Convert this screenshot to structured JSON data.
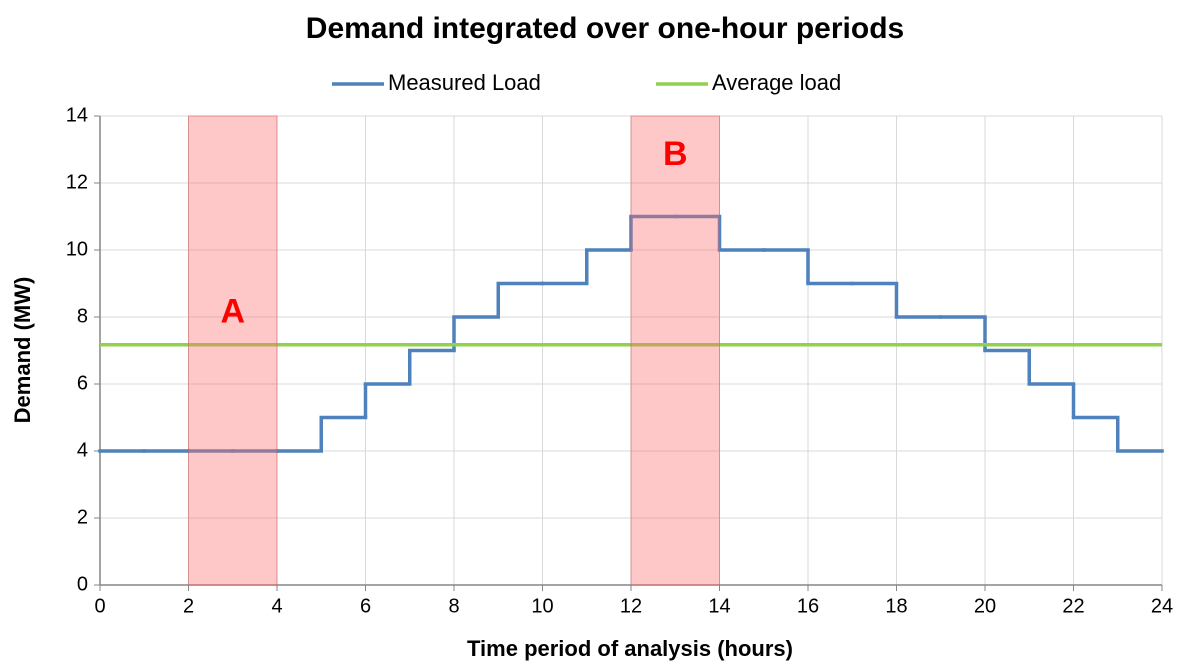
{
  "chart_data": {
    "type": "step",
    "title": "Demand integrated over one-hour periods",
    "xlabel": "Time period of analysis (hours)",
    "ylabel": "Demand (MW)",
    "x": [
      0,
      1,
      2,
      3,
      4,
      5,
      6,
      7,
      8,
      9,
      10,
      11,
      12,
      13,
      14,
      15,
      16,
      17,
      18,
      19,
      20,
      21,
      22,
      23
    ],
    "series": [
      {
        "name": "Measured Load",
        "color": "#4f81bd",
        "values": [
          4,
          4,
          4,
          4,
          4,
          5,
          6,
          7,
          8,
          9,
          9,
          10,
          11,
          11,
          10,
          10,
          9,
          9,
          8,
          8,
          7,
          6,
          5,
          4
        ]
      }
    ],
    "average": {
      "name": "Average load",
      "color": "#92d050",
      "value": 7.17
    },
    "regions": [
      {
        "label": "A",
        "x": [
          2,
          4
        ],
        "label_y": 8.1
      },
      {
        "label": "B",
        "x": [
          12,
          14
        ],
        "label_y": 12.8
      }
    ],
    "xlim": [
      0,
      24
    ],
    "xticks": [
      0,
      2,
      4,
      6,
      8,
      10,
      12,
      14,
      16,
      18,
      20,
      22,
      24
    ],
    "ylim": [
      0,
      14
    ],
    "yticks": [
      0,
      2,
      4,
      6,
      8,
      10,
      12,
      14
    ],
    "grid": true,
    "legend": "top"
  }
}
